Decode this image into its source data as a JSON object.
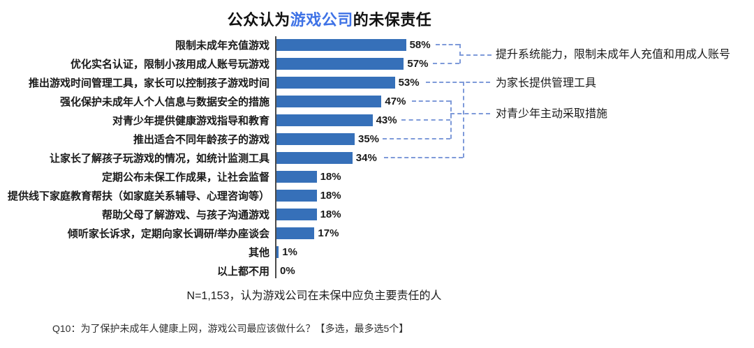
{
  "title": {
    "prefix": "公众认为",
    "highlight": "游戏公司",
    "suffix": "的未保责任"
  },
  "chart_data": {
    "type": "bar",
    "orientation": "horizontal",
    "title": "公众认为游戏公司的未保责任",
    "categories": [
      "限制未成年充值游戏",
      "优化实名认证，限制小孩用成人账号玩游戏",
      "推出游戏时间管理工具，家长可以控制孩子游戏时间",
      "强化保护未成年人个人信息与数据安全的措施",
      "对青少年提供健康游戏指导和教育",
      "推出适合不同年龄孩子的游戏",
      "让家长了解孩子玩游戏的情况，如统计监测工具",
      "定期公布未保工作成果，让社会监督",
      "提供线下家庭教育帮扶（如家庭关系辅导、心理咨询等）",
      "帮助父母了解游戏、与孩子沟通游戏",
      "倾听家长诉求，定期向家长调研/举办座谈会",
      "其他",
      "以上都不用"
    ],
    "values": [
      58,
      57,
      53,
      47,
      43,
      35,
      34,
      18,
      18,
      18,
      17,
      1,
      0
    ],
    "value_labels": [
      "58%",
      "57%",
      "53%",
      "47%",
      "43%",
      "35%",
      "34%",
      "18%",
      "18%",
      "18%",
      "17%",
      "1%",
      "0%"
    ],
    "xlim": [
      0,
      60
    ],
    "grid": false,
    "bar_color": "#3670B9"
  },
  "annotations": [
    {
      "label": "提升系统能力，限制未成年人充值和用成人账号",
      "linked_value_labels": [
        "58%",
        "57%"
      ]
    },
    {
      "label": "为家长提供管理工具",
      "linked_value_labels": [
        "53%",
        "34%"
      ]
    },
    {
      "label": "对青少年主动采取措施",
      "linked_value_labels": [
        "47%",
        "43%",
        "35%"
      ]
    }
  ],
  "footnotes": {
    "sample": "N=1,153，认为游戏公司在未保中应负主要责任的人",
    "question": "Q10：为了保护未成年人健康上网，游戏公司最应该做什么？【多选，最多选5个】"
  },
  "colors": {
    "bar": "#3670B9",
    "title_highlight": "#3E72E6",
    "connector": "#7E9AD9",
    "axis": "#4a4a4a"
  }
}
